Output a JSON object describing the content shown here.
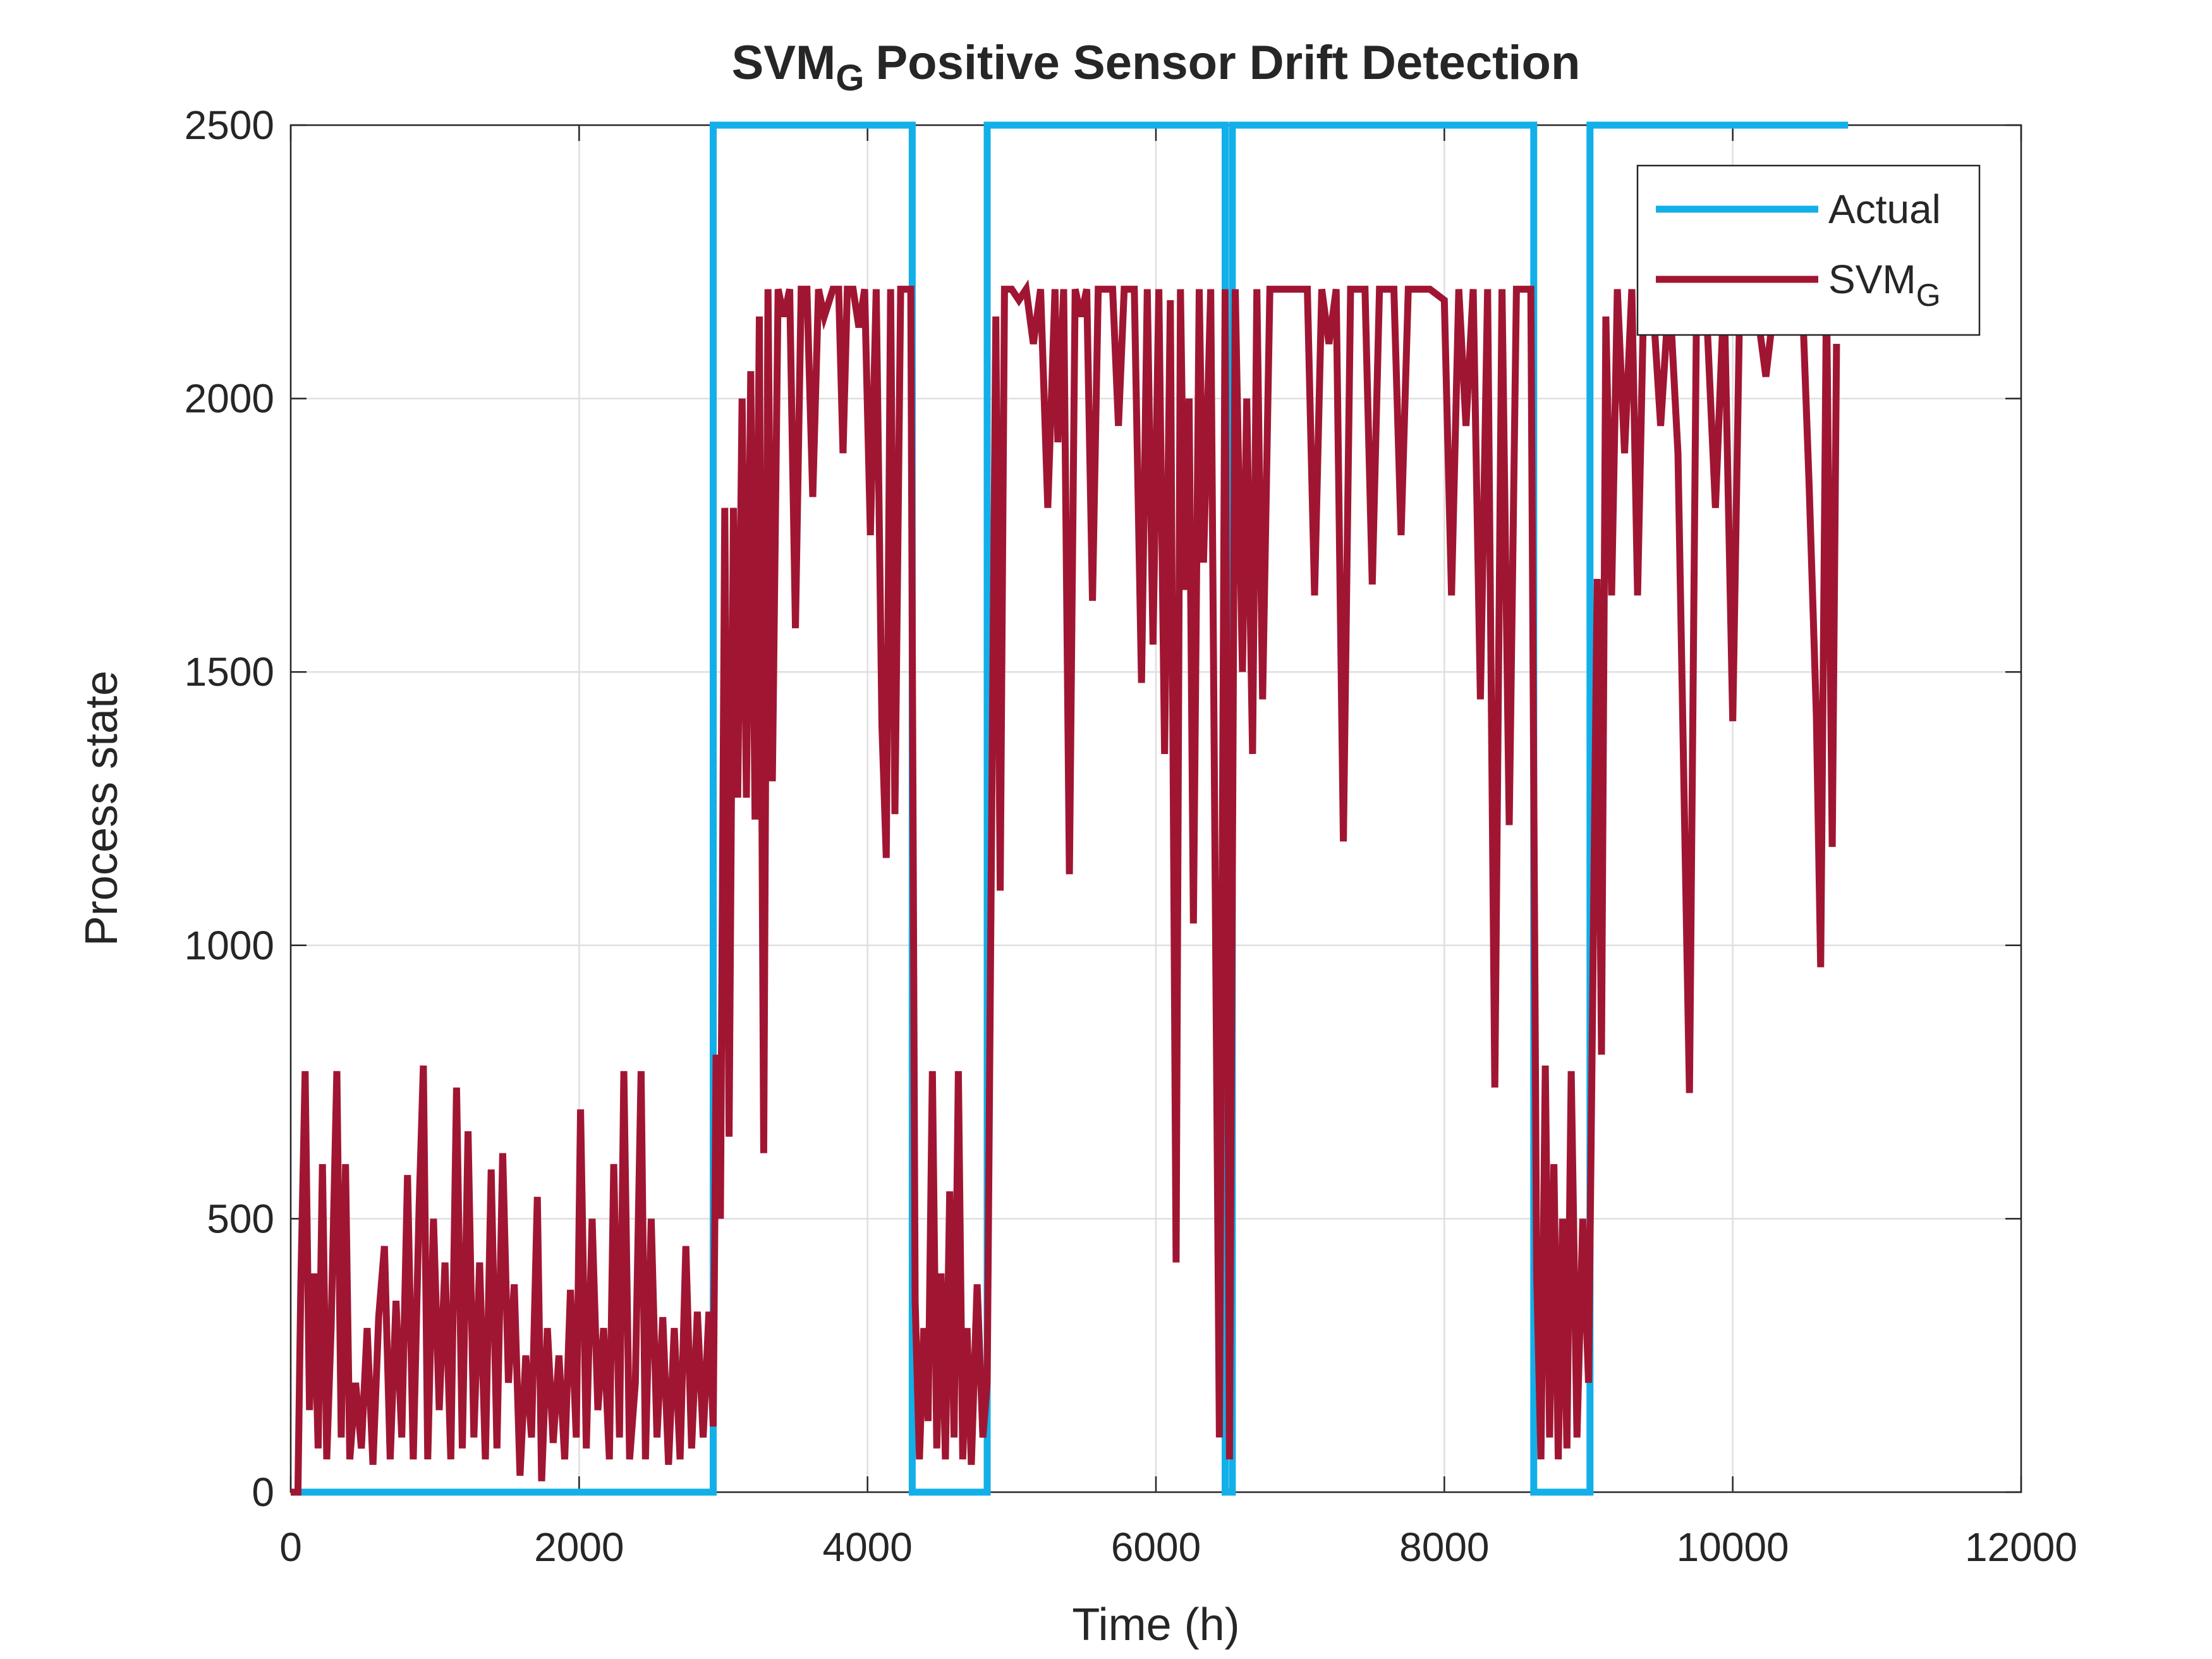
{
  "chart_data": {
    "type": "line",
    "title": "SVM",
    "title_subscript": "G",
    "title_rest": "Positive Sensor Drift Detection",
    "xlabel": "Time (h)",
    "ylabel": "Process state",
    "xlim": [
      0,
      12000
    ],
    "ylim": [
      0,
      2500
    ],
    "xticks": [
      0,
      2000,
      4000,
      6000,
      8000,
      10000,
      12000
    ],
    "yticks": [
      0,
      500,
      1000,
      1500,
      2000,
      2500
    ],
    "grid": true,
    "legend": "upper right",
    "series": [
      {
        "name": "Actual",
        "color": "#12afe8",
        "x": [
          0,
          2930,
          2930,
          4310,
          4310,
          4830,
          4830,
          6480,
          6480,
          6530,
          6530,
          8620,
          8620,
          9010,
          9010,
          10800
        ],
        "values": [
          0,
          0,
          2500,
          2500,
          0,
          0,
          2500,
          2500,
          0,
          0,
          2500,
          2500,
          0,
          0,
          2500,
          2500
        ]
      },
      {
        "name": "SVM",
        "name_subscript": "G",
        "color": "#a01632",
        "x": [
          0,
          50,
          70,
          100,
          130,
          160,
          190,
          220,
          250,
          280,
          320,
          350,
          380,
          410,
          450,
          490,
          530,
          570,
          610,
          650,
          690,
          730,
          770,
          810,
          850,
          890,
          920,
          950,
          990,
          1030,
          1070,
          1110,
          1150,
          1190,
          1230,
          1270,
          1310,
          1350,
          1390,
          1430,
          1470,
          1510,
          1550,
          1590,
          1630,
          1670,
          1710,
          1740,
          1780,
          1820,
          1860,
          1900,
          1940,
          1980,
          2010,
          2050,
          2090,
          2130,
          2170,
          2210,
          2240,
          2280,
          2310,
          2350,
          2390,
          2430,
          2460,
          2500,
          2540,
          2580,
          2620,
          2660,
          2700,
          2740,
          2780,
          2820,
          2860,
          2900,
          2930,
          2950,
          2980,
          3010,
          3040,
          3070,
          3100,
          3130,
          3160,
          3190,
          3220,
          3250,
          3280,
          3310,
          3340,
          3380,
          3420,
          3460,
          3500,
          3540,
          3580,
          3620,
          3660,
          3700,
          3760,
          3800,
          3830,
          3860,
          3900,
          3940,
          3980,
          4020,
          4060,
          4100,
          4130,
          4160,
          4190,
          4230,
          4300,
          4330,
          4360,
          4390,
          4420,
          4450,
          4480,
          4510,
          4540,
          4570,
          4600,
          4630,
          4660,
          4690,
          4720,
          4760,
          4800,
          4830,
          4860,
          4890,
          4920,
          4950,
          5000,
          5050,
          5100,
          5150,
          5200,
          5250,
          5300,
          5320,
          5360,
          5400,
          5440,
          5480,
          5520,
          5560,
          5600,
          5700,
          5740,
          5780,
          5850,
          5900,
          5940,
          5980,
          6020,
          6060,
          6100,
          6140,
          6170,
          6200,
          6230,
          6260,
          6300,
          6330,
          6380,
          6440,
          6480,
          6510,
          6550,
          6600,
          6630,
          6670,
          6700,
          6740,
          6790,
          6850,
          6950,
          7050,
          7100,
          7150,
          7200,
          7250,
          7300,
          7350,
          7450,
          7500,
          7550,
          7650,
          7700,
          7750,
          7900,
          8000,
          8050,
          8100,
          8150,
          8200,
          8250,
          8300,
          8350,
          8400,
          8450,
          8500,
          8600,
          8640,
          8670,
          8700,
          8730,
          8760,
          8790,
          8820,
          8850,
          8880,
          8920,
          8960,
          9000,
          9060,
          9090,
          9120,
          9160,
          9200,
          9250,
          9300,
          9340,
          9380,
          9440,
          9500,
          9560,
          9620,
          9700,
          9750,
          9820,
          9880,
          9940,
          10000,
          10050,
          10150,
          10230,
          10300,
          10480,
          10530,
          10580,
          10610,
          10650,
          10690,
          10720
        ],
        "values": [
          0,
          0,
          380,
          770,
          150,
          400,
          80,
          600,
          60,
          300,
          770,
          100,
          600,
          60,
          200,
          80,
          300,
          50,
          320,
          450,
          60,
          350,
          100,
          580,
          60,
          520,
          780,
          60,
          500,
          150,
          420,
          60,
          740,
          80,
          660,
          100,
          420,
          60,
          590,
          80,
          620,
          200,
          380,
          30,
          250,
          100,
          540,
          20,
          300,
          90,
          250,
          60,
          370,
          100,
          700,
          80,
          500,
          150,
          300,
          60,
          600,
          100,
          770,
          60,
          200,
          770,
          60,
          500,
          100,
          320,
          50,
          300,
          60,
          450,
          80,
          330,
          100,
          330,
          120,
          800,
          500,
          1800,
          650,
          1800,
          1270,
          2000,
          1270,
          2050,
          1230,
          2150,
          620,
          2200,
          1300,
          2200,
          2150,
          2200,
          1580,
          2200,
          2200,
          1820,
          2200,
          2150,
          2200,
          2200,
          1900,
          2200,
          2200,
          2130,
          2200,
          1750,
          2200,
          1400,
          1160,
          2200,
          1240,
          2200,
          2200,
          350,
          60,
          300,
          130,
          770,
          80,
          400,
          60,
          550,
          100,
          770,
          60,
          300,
          50,
          380,
          100,
          200,
          1200,
          2150,
          1100,
          2200,
          2200,
          2180,
          2200,
          2100,
          2200,
          1800,
          2200,
          1920,
          2200,
          1130,
          2200,
          2150,
          2200,
          1630,
          2200,
          2200,
          1950,
          2200,
          2200,
          1480,
          2200,
          1550,
          2200,
          1350,
          2180,
          420,
          2200,
          1650,
          2000,
          1040,
          2200,
          1700,
          2200,
          100,
          2200,
          60,
          2200,
          1500,
          2000,
          1350,
          2200,
          1450,
          2200,
          2200,
          2200,
          2200,
          1640,
          2200,
          2100,
          2200,
          1190,
          2200,
          2200,
          1660,
          2200,
          2200,
          1750,
          2200,
          2200,
          2180,
          1640,
          2200,
          1950,
          2200,
          1450,
          2200,
          740,
          2200,
          1220,
          2200,
          2200,
          400,
          60,
          780,
          100,
          600,
          60,
          500,
          80,
          770,
          100,
          500,
          200,
          1670,
          800,
          2150,
          1640,
          2200,
          1900,
          2200,
          1640,
          2150,
          2200,
          1950,
          2200,
          1900,
          730,
          2200,
          2150,
          1800,
          2200,
          1410,
          2200,
          2200,
          2040,
          2200,
          2200,
          1840,
          1420,
          960,
          2200,
          1180,
          2100
        ]
      }
    ]
  }
}
